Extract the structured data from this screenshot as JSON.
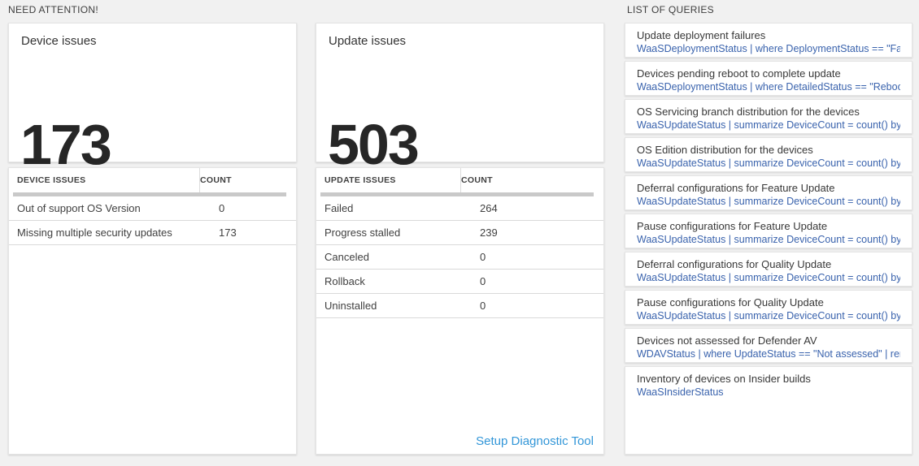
{
  "colors": {
    "page_bg": "#f1f1f1",
    "card_bg": "#ffffff",
    "big_number": "#262626",
    "header_bar": "#c9c9c9",
    "query_link": "#3a63ad",
    "action_link": "#3296d8"
  },
  "need_attention": {
    "section_title": "NEED ATTENTION!",
    "device_card": {
      "title": "Device issues",
      "big_number": "173",
      "table": {
        "headers": [
          "DEVICE ISSUES",
          "COUNT"
        ],
        "rows": [
          {
            "name": "Out of support OS Version",
            "count": "0"
          },
          {
            "name": "Missing multiple security updates",
            "count": "173"
          }
        ]
      }
    },
    "update_card": {
      "title": "Update issues",
      "big_number": "503",
      "table": {
        "headers": [
          "UPDATE ISSUES",
          "COUNT"
        ],
        "rows": [
          {
            "name": "Failed",
            "count": "264"
          },
          {
            "name": "Progress stalled",
            "count": "239"
          },
          {
            "name": "Canceled",
            "count": "0"
          },
          {
            "name": "Rollback",
            "count": "0"
          },
          {
            "name": "Uninstalled",
            "count": "0"
          }
        ]
      },
      "footer_link": "Setup Diagnostic Tool"
    }
  },
  "queries": {
    "section_title": "LIST OF QUERIES",
    "items": [
      {
        "title": "Update deployment failures",
        "query": "WaaSDeploymentStatus | where DeploymentStatus == \"Failed\" |..."
      },
      {
        "title": "Devices pending reboot to complete update",
        "query": "WaaSDeploymentStatus | where DetailedStatus == \"Reboot pend..."
      },
      {
        "title": "OS Servicing branch distribution for the devices",
        "query": "WaaSUpdateStatus | summarize DeviceCount = count() by OSSer..."
      },
      {
        "title": "OS Edition distribution for the devices",
        "query": "WaaSUpdateStatus | summarize DeviceCount = count() by OSEdit..."
      },
      {
        "title": "Deferral configurations for Feature Update",
        "query": "WaaSUpdateStatus | summarize DeviceCount = count() by Featur..."
      },
      {
        "title": "Pause configurations for Feature Update",
        "query": "WaaSUpdateStatus | summarize DeviceCount = count() by Featur..."
      },
      {
        "title": "Deferral configurations for Quality Update",
        "query": "WaaSUpdateStatus | summarize DeviceCount = count() by Qualit..."
      },
      {
        "title": "Pause configurations for Quality Update",
        "query": "WaaSUpdateStatus | summarize DeviceCount = count() by Qualit..."
      },
      {
        "title": "Devices not assessed for Defender AV",
        "query": "WDAVStatus | where UpdateStatus == \"Not assessed\" | render ta..."
      },
      {
        "title": "Inventory of devices on Insider builds",
        "query": "WaaSInsiderStatus"
      }
    ]
  }
}
